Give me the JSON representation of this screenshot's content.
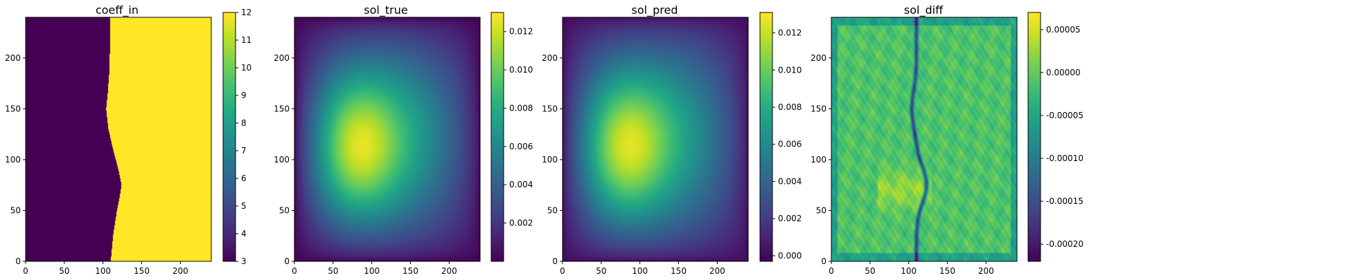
{
  "chart_data": [
    {
      "type": "heatmap",
      "title": "coeff_in",
      "field": "step",
      "xlim": [
        0,
        240
      ],
      "ylim": [
        0,
        240
      ],
      "xticks": [
        "0",
        "50",
        "100",
        "150",
        "200"
      ],
      "yticks": [
        "0",
        "50",
        "100",
        "150",
        "200"
      ],
      "colormap": "viridis",
      "colorbar": {
        "min": 3,
        "max": 12,
        "ticks": [
          "3",
          "4",
          "5",
          "6",
          "7",
          "8",
          "9",
          "10",
          "11",
          "12"
        ]
      },
      "boundary_x_by_y": [
        [
          0,
          110
        ],
        [
          25,
          113
        ],
        [
          50,
          118
        ],
        [
          65,
          122
        ],
        [
          75,
          124
        ],
        [
          90,
          120
        ],
        [
          110,
          113
        ],
        [
          130,
          107
        ],
        [
          150,
          104
        ],
        [
          165,
          106
        ],
        [
          185,
          108
        ],
        [
          210,
          109
        ],
        [
          240,
          109
        ]
      ],
      "left_value": 3,
      "right_value": 12
    },
    {
      "type": "heatmap",
      "title": "sol_true",
      "field": "blob",
      "xlim": [
        0,
        240
      ],
      "ylim": [
        0,
        240
      ],
      "xticks": [
        "0",
        "50",
        "100",
        "150",
        "200"
      ],
      "yticks": [
        "0",
        "50",
        "100",
        "150",
        "200"
      ],
      "colormap": "viridis",
      "colorbar": {
        "min": 0.0,
        "max": 0.013,
        "ticks": [
          "0.002",
          "0.004",
          "0.006",
          "0.008",
          "0.010",
          "0.012"
        ]
      },
      "peak": {
        "x": 72,
        "y": 110,
        "value": 0.013
      }
    },
    {
      "type": "heatmap",
      "title": "sol_pred",
      "field": "blob",
      "xlim": [
        0,
        240
      ],
      "ylim": [
        0,
        240
      ],
      "xticks": [
        "0",
        "50",
        "100",
        "150",
        "200"
      ],
      "yticks": [
        "0",
        "50",
        "100",
        "150",
        "200"
      ],
      "colormap": "viridis",
      "colorbar": {
        "min": -0.0003,
        "max": 0.0131,
        "ticks": [
          "0.000",
          "0.002",
          "0.004",
          "0.006",
          "0.008",
          "0.010",
          "0.012"
        ]
      },
      "peak": {
        "x": 72,
        "y": 110,
        "value": 0.013
      }
    },
    {
      "type": "heatmap",
      "title": "sol_diff",
      "field": "noise",
      "xlim": [
        0,
        240
      ],
      "ylim": [
        0,
        240
      ],
      "xticks": [
        "0",
        "50",
        "100",
        "150",
        "200"
      ],
      "yticks": [
        "0",
        "50",
        "100",
        "150",
        "200"
      ],
      "colormap": "viridis",
      "colorbar": {
        "min": -0.00022,
        "max": 7e-05,
        "ticks": [
          "-0.00020",
          "-0.00015",
          "-0.00010",
          "-0.00005",
          "0.00000",
          "0.00005"
        ]
      }
    }
  ]
}
